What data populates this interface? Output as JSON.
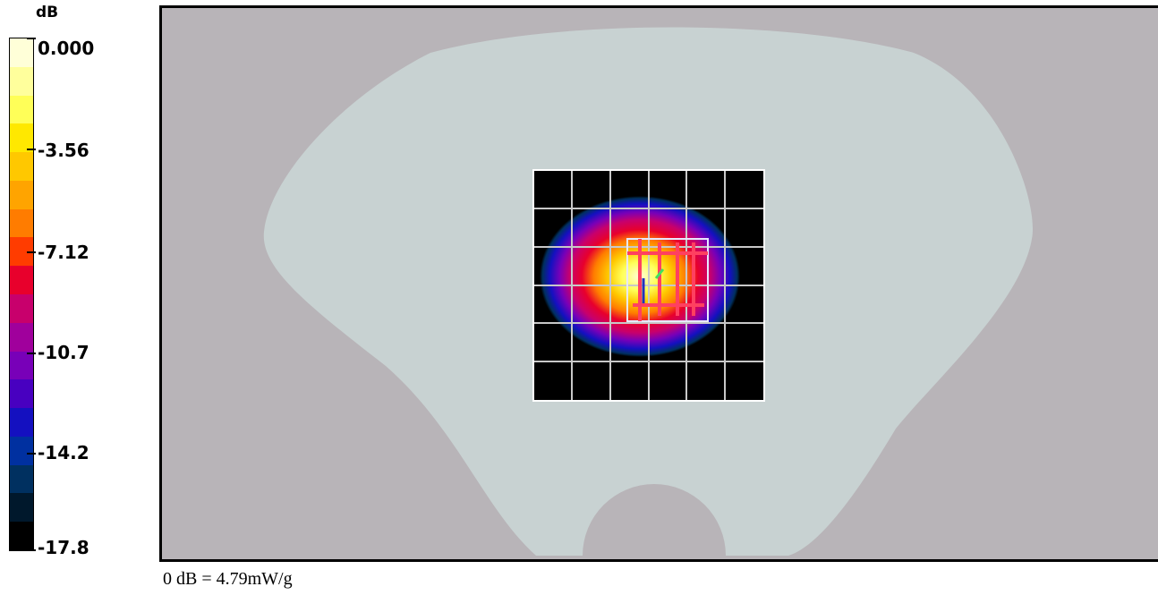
{
  "legend": {
    "unit": "dB",
    "ticks": [
      "0.000",
      "-3.56",
      "-7.12",
      "-10.7",
      "-14.2",
      "-17.8"
    ],
    "colors": [
      "#ffffd8",
      "#ffff9c",
      "#ffff58",
      "#ffe800",
      "#ffc800",
      "#ffa400",
      "#ff7c00",
      "#ff3c00",
      "#e8002c",
      "#c8006c",
      "#a0009c",
      "#7800b8",
      "#4800c0",
      "#1410c0",
      "#0030a0",
      "#003060",
      "#00182c",
      "#000000"
    ]
  },
  "chart_data": {
    "type": "heatmap",
    "colorbar": {
      "unit": "dB",
      "range": [
        -17.8,
        0.0
      ],
      "tick_labels": [
        "0.000",
        "-3.56",
        "-7.12",
        "-10.7",
        "-14.2",
        "-17.8"
      ]
    },
    "peak_location": "inside the scanned square, slightly left of center",
    "grid": true
  },
  "footnote": "0 dB = 4.79mW/g",
  "colors": {
    "background": "#b8b4b8",
    "phantom": "#c8d2d2",
    "scan_background": "#000000",
    "grid": "#c8c8c8",
    "overlay": "#ff4060"
  }
}
